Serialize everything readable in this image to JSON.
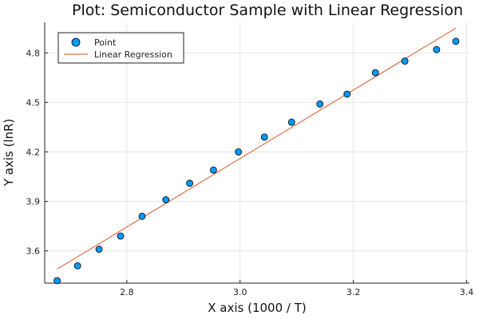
{
  "chart_data": {
    "type": "scatter",
    "title": "Plot: Semiconductor Sample with Linear Regression",
    "xlabel": "X axis (1000 / T)",
    "ylabel": "Y axis (lnR)",
    "xlim": [
      2.655,
      3.405
    ],
    "ylim": [
      3.405,
      4.985
    ],
    "xticks": [
      2.8,
      3.0,
      3.2,
      3.4
    ],
    "xtick_labels": [
      "2.8",
      "3.0",
      "3.2",
      "3.4"
    ],
    "yticks": [
      3.6,
      3.9,
      4.2,
      4.5,
      4.8
    ],
    "ytick_labels": [
      "3.6",
      "3.9",
      "4.2",
      "4.5",
      "4.8"
    ],
    "grid": true,
    "legend_position": "top-left",
    "series": [
      {
        "name": "Point",
        "kind": "scatter",
        "color": "#009AFA",
        "x": [
          2.677,
          2.713,
          2.751,
          2.789,
          2.827,
          2.869,
          2.911,
          2.953,
          2.997,
          3.043,
          3.091,
          3.141,
          3.189,
          3.239,
          3.291,
          3.347,
          3.381
        ],
        "y": [
          3.42,
          3.51,
          3.61,
          3.69,
          3.81,
          3.91,
          4.01,
          4.09,
          4.2,
          4.29,
          4.38,
          4.49,
          4.55,
          4.68,
          4.75,
          4.82,
          4.87
        ]
      },
      {
        "name": "Linear Regression",
        "kind": "line",
        "color": "#E26F46",
        "x": [
          2.677,
          3.381
        ],
        "y": [
          3.49,
          4.95
        ]
      }
    ]
  }
}
